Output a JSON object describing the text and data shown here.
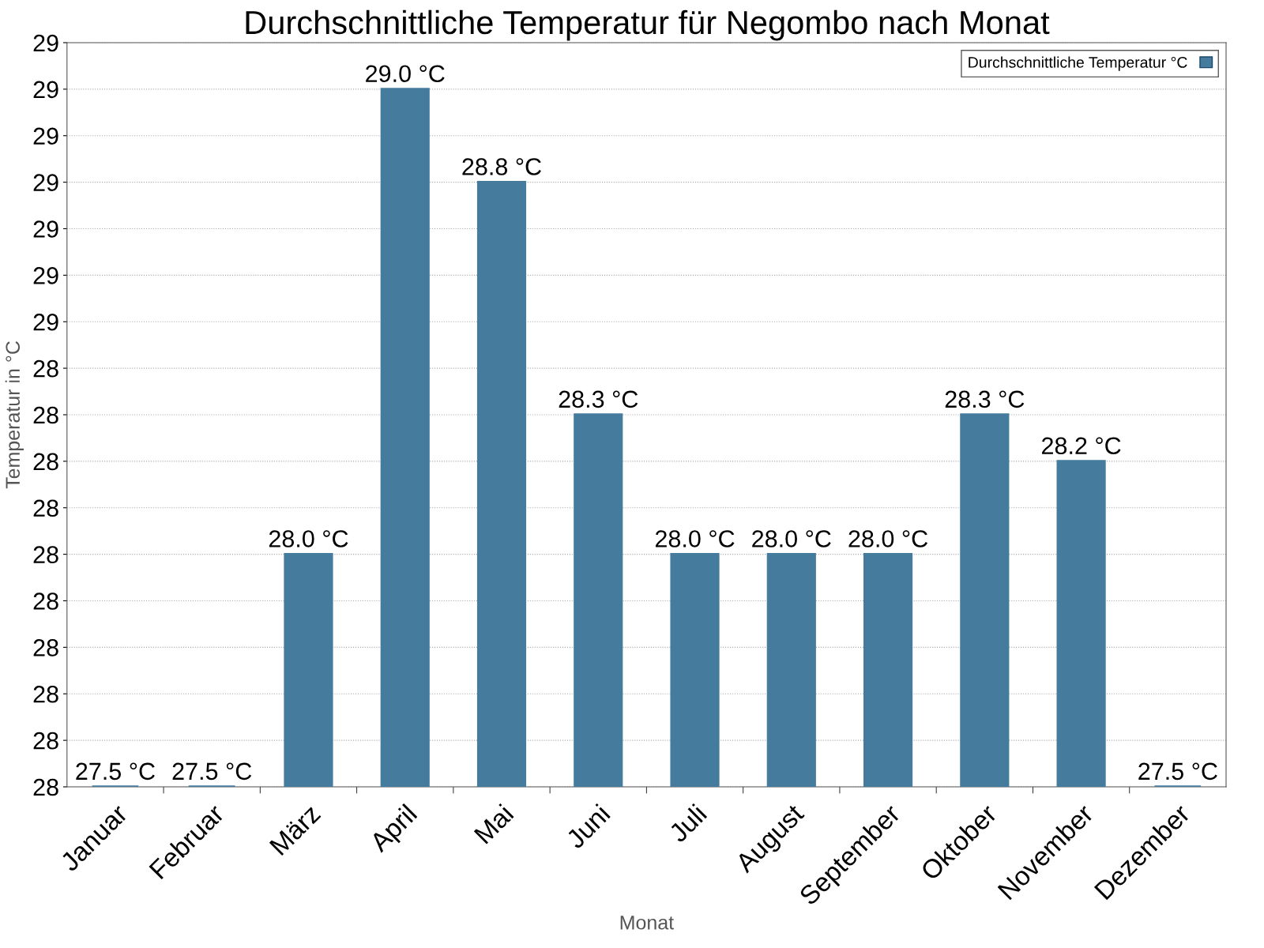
{
  "chart_data": {
    "type": "bar",
    "title": "Durchschnittliche Temperatur für Negombo nach Monat",
    "xlabel": "Monat",
    "ylabel": "Temperatur in °C",
    "categories": [
      "Januar",
      "Februar",
      "März",
      "April",
      "Mai",
      "Juni",
      "Juli",
      "August",
      "September",
      "Oktober",
      "November",
      "Dezember"
    ],
    "series": [
      {
        "name": "Durchschnittliche Temperatur °C",
        "color": "#457b9d",
        "values": [
          27.5,
          27.5,
          28.0,
          29.0,
          28.8,
          28.3,
          28.0,
          28.0,
          28.0,
          28.3,
          28.2,
          27.5
        ],
        "value_labels": [
          "27.5 °C",
          "27.5 °C",
          "28.0 °C",
          "29.0 °C",
          "28.8 °C",
          "28.3 °C",
          "28.0 °C",
          "28.0 °C",
          "28.0 °C",
          "28.3 °C",
          "28.2 °C",
          "27.5 °C"
        ]
      }
    ],
    "ylim": [
      27.5,
      29.1
    ],
    "yticks": [
      {
        "value": 27.5,
        "label": "28"
      },
      {
        "value": 27.6,
        "label": "28"
      },
      {
        "value": 27.7,
        "label": "28"
      },
      {
        "value": 27.8,
        "label": "28"
      },
      {
        "value": 27.9,
        "label": "28"
      },
      {
        "value": 28.0,
        "label": "28"
      },
      {
        "value": 28.1,
        "label": "28"
      },
      {
        "value": 28.2,
        "label": "28"
      },
      {
        "value": 28.3,
        "label": "28"
      },
      {
        "value": 28.4,
        "label": "28"
      },
      {
        "value": 28.5,
        "label": "29"
      },
      {
        "value": 28.6,
        "label": "29"
      },
      {
        "value": 28.7,
        "label": "29"
      },
      {
        "value": 28.8,
        "label": "29"
      },
      {
        "value": 28.9,
        "label": "29"
      },
      {
        "value": 29.0,
        "label": "29"
      },
      {
        "value": 29.1,
        "label": "29"
      }
    ],
    "grid": "y",
    "legend": "top right"
  }
}
